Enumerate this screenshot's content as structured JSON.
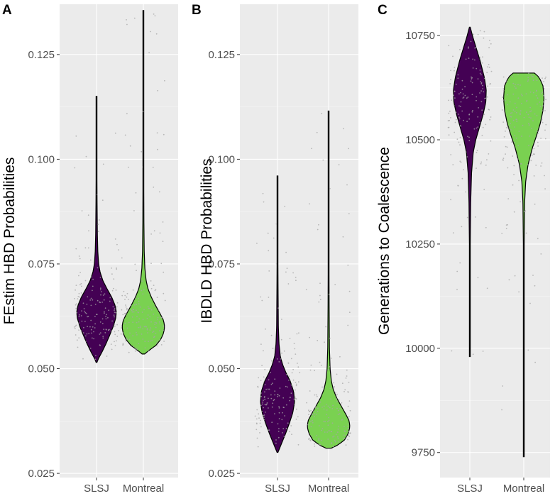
{
  "colors": {
    "slsj": "#440154",
    "montreal": "#7ad151",
    "jitter": "#a6a6a6",
    "outline": "#000000"
  },
  "chart_data": [
    {
      "panel_label": "A",
      "type": "violin",
      "title": "",
      "xlabel": "",
      "ylabel": "FEstim HBD Probabilities",
      "categories": [
        "SLSJ",
        "Montreal"
      ],
      "ylim": [
        0.024,
        0.137
      ],
      "yticks": [
        0.025,
        0.05,
        0.075,
        0.1,
        0.125
      ],
      "ytick_labels": [
        "0.025",
        "0.050",
        "0.075",
        "0.100",
        "0.125"
      ],
      "grid": true,
      "series": [
        {
          "name": "SLSJ",
          "min": 0.0515,
          "max": 0.115,
          "profile": [
            [
              0.0515,
              0.02
            ],
            [
              0.0525,
              0.1
            ],
            [
              0.054,
              0.26
            ],
            [
              0.056,
              0.45
            ],
            [
              0.058,
              0.62
            ],
            [
              0.06,
              0.78
            ],
            [
              0.062,
              0.9
            ],
            [
              0.0635,
              0.93
            ],
            [
              0.065,
              0.88
            ],
            [
              0.067,
              0.72
            ],
            [
              0.069,
              0.5
            ],
            [
              0.071,
              0.3
            ],
            [
              0.073,
              0.17
            ],
            [
              0.075,
              0.1
            ],
            [
              0.078,
              0.06
            ],
            [
              0.082,
              0.04
            ],
            [
              0.09,
              0.025
            ],
            [
              0.1,
              0.015
            ],
            [
              0.115,
              0.005
            ]
          ]
        },
        {
          "name": "Montreal",
          "min": 0.0535,
          "max": 0.1355,
          "profile": [
            [
              0.0535,
              0.06
            ],
            [
              0.0545,
              0.3
            ],
            [
              0.0555,
              0.58
            ],
            [
              0.057,
              0.82
            ],
            [
              0.0585,
              0.95
            ],
            [
              0.06,
              1.0
            ],
            [
              0.0615,
              0.95
            ],
            [
              0.063,
              0.8
            ],
            [
              0.065,
              0.58
            ],
            [
              0.067,
              0.38
            ],
            [
              0.069,
              0.22
            ],
            [
              0.071,
              0.13
            ],
            [
              0.074,
              0.07
            ],
            [
              0.078,
              0.04
            ],
            [
              0.085,
              0.025
            ],
            [
              0.1,
              0.015
            ],
            [
              0.12,
              0.008
            ],
            [
              0.1355,
              0.004
            ]
          ]
        }
      ]
    },
    {
      "panel_label": "B",
      "type": "violin",
      "title": "",
      "xlabel": "",
      "ylabel": "IBDLD HBD Probabilities",
      "categories": [
        "SLSJ",
        "Montreal"
      ],
      "ylim": [
        0.024,
        0.137
      ],
      "yticks": [
        0.025,
        0.05,
        0.075,
        0.1,
        0.125
      ],
      "ytick_labels": [
        "0.025",
        "0.050",
        "0.075",
        "0.100",
        "0.125"
      ],
      "grid": true,
      "series": [
        {
          "name": "SLSJ",
          "min": 0.03,
          "max": 0.096,
          "profile": [
            [
              0.03,
              0.02
            ],
            [
              0.031,
              0.1
            ],
            [
              0.0325,
              0.22
            ],
            [
              0.0345,
              0.38
            ],
            [
              0.037,
              0.56
            ],
            [
              0.0395,
              0.72
            ],
            [
              0.042,
              0.8
            ],
            [
              0.0445,
              0.76
            ],
            [
              0.047,
              0.6
            ],
            [
              0.049,
              0.4
            ],
            [
              0.051,
              0.24
            ],
            [
              0.053,
              0.13
            ],
            [
              0.056,
              0.07
            ],
            [
              0.06,
              0.04
            ],
            [
              0.07,
              0.025
            ],
            [
              0.08,
              0.015
            ],
            [
              0.096,
              0.005
            ]
          ]
        },
        {
          "name": "Montreal",
          "min": 0.031,
          "max": 0.1115,
          "profile": [
            [
              0.031,
              0.12
            ],
            [
              0.0318,
              0.45
            ],
            [
              0.033,
              0.75
            ],
            [
              0.0345,
              0.92
            ],
            [
              0.036,
              1.0
            ],
            [
              0.0375,
              0.97
            ],
            [
              0.039,
              0.82
            ],
            [
              0.041,
              0.6
            ],
            [
              0.043,
              0.38
            ],
            [
              0.045,
              0.22
            ],
            [
              0.047,
              0.13
            ],
            [
              0.05,
              0.07
            ],
            [
              0.055,
              0.04
            ],
            [
              0.065,
              0.025
            ],
            [
              0.08,
              0.015
            ],
            [
              0.1115,
              0.005
            ]
          ]
        }
      ]
    },
    {
      "panel_label": "C",
      "type": "violin",
      "title": "",
      "xlabel": "",
      "ylabel": "Generations to Coalescence",
      "categories": [
        "SLSJ",
        "Montreal"
      ],
      "ylim": [
        9690,
        10825
      ],
      "yticks": [
        9750,
        10000,
        10250,
        10500,
        10750
      ],
      "ytick_labels": [
        "9750",
        "10000",
        "10250",
        "10500",
        "10750"
      ],
      "grid": true,
      "series": [
        {
          "name": "SLSJ",
          "min": 9980,
          "max": 10770,
          "profile": [
            [
              9980,
              0.005
            ],
            [
              10100,
              0.01
            ],
            [
              10250,
              0.02
            ],
            [
              10350,
              0.04
            ],
            [
              10420,
              0.08
            ],
            [
              10470,
              0.16
            ],
            [
              10500,
              0.28
            ],
            [
              10530,
              0.45
            ],
            [
              10560,
              0.62
            ],
            [
              10590,
              0.75
            ],
            [
              10620,
              0.77
            ],
            [
              10650,
              0.68
            ],
            [
              10690,
              0.48
            ],
            [
              10720,
              0.3
            ],
            [
              10745,
              0.15
            ],
            [
              10760,
              0.07
            ],
            [
              10770,
              0.02
            ]
          ]
        },
        {
          "name": "Montreal",
          "min": 9740,
          "max": 10660,
          "profile": [
            [
              9740,
              0.005
            ],
            [
              10000,
              0.01
            ],
            [
              10250,
              0.02
            ],
            [
              10350,
              0.04
            ],
            [
              10400,
              0.09
            ],
            [
              10440,
              0.2
            ],
            [
              10480,
              0.4
            ],
            [
              10510,
              0.6
            ],
            [
              10540,
              0.78
            ],
            [
              10570,
              0.9
            ],
            [
              10600,
              0.95
            ],
            [
              10630,
              0.9
            ],
            [
              10650,
              0.72
            ],
            [
              10660,
              0.5
            ]
          ]
        }
      ]
    }
  ]
}
